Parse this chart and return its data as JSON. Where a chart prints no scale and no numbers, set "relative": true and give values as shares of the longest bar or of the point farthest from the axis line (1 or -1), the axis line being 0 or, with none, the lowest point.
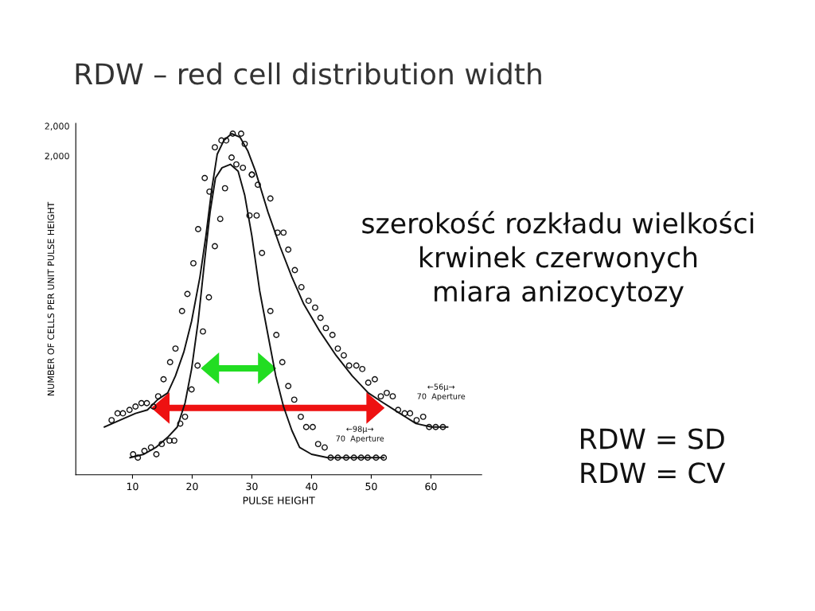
{
  "chart_data": {
    "type": "line",
    "title": "RDW – red cell distribution width",
    "xlabel": "PULSE HEIGHT",
    "ylabel": "NUMBER OF CELLS PER UNIT PULSE HEIGHT",
    "xlim": [
      0.5,
      68.5
    ],
    "xticks": [
      10,
      20,
      30,
      40,
      50,
      60
    ],
    "relative": true,
    "grid": false,
    "legend": false,
    "series": [
      {
        "color": "#111111",
        "marker": "none",
        "x": [
          5.3,
          7.9,
          10.5,
          12.5,
          14.2,
          15.9,
          17.2,
          18.6,
          19.9,
          21.3,
          22.3,
          23.3,
          24.2,
          25.3,
          26.6,
          28.0,
          29.3,
          30.6,
          32.7,
          34.7,
          36.7,
          38.7,
          41.4,
          44.1,
          46.8,
          49.5,
          52.1,
          54.8,
          57.5,
          60.1,
          62.8
        ],
        "values": [
          0.14,
          0.16,
          0.18,
          0.19,
          0.22,
          0.24,
          0.29,
          0.36,
          0.45,
          0.58,
          0.7,
          0.84,
          0.94,
          0.98,
          1.0,
          0.99,
          0.95,
          0.89,
          0.77,
          0.67,
          0.58,
          0.5,
          0.42,
          0.35,
          0.29,
          0.24,
          0.21,
          0.18,
          0.15,
          0.14,
          0.14
        ]
      },
      {
        "color": "#111111",
        "marker": "none",
        "x": [
          9.6,
          11.9,
          13.9,
          15.9,
          17.5,
          18.8,
          19.9,
          21.0,
          22.1,
          23.0,
          23.9,
          25.0,
          26.4,
          27.7,
          28.8,
          30.0,
          31.3,
          32.7,
          34.0,
          35.3,
          36.7,
          38.0,
          40.0,
          42.7,
          46.7,
          52.1
        ],
        "values": [
          0.05,
          0.06,
          0.08,
          0.11,
          0.14,
          0.21,
          0.31,
          0.45,
          0.63,
          0.77,
          0.87,
          0.9,
          0.91,
          0.89,
          0.82,
          0.7,
          0.54,
          0.41,
          0.29,
          0.2,
          0.13,
          0.08,
          0.06,
          0.05,
          0.05,
          0.05
        ]
      },
      {
        "type": "scatter",
        "color": "#111111",
        "marker": "circle",
        "x": [
          6.5,
          7.5,
          8.4,
          9.5,
          10.5,
          11.5,
          12.4,
          13.5,
          14.3,
          15.2,
          16.3,
          17.2,
          18.3,
          19.2,
          20.2,
          21.0,
          22.1,
          22.9,
          23.8,
          24.9,
          25.7,
          26.8,
          28.2,
          28.8,
          30.0,
          31.0,
          33.1,
          34.3,
          35.3,
          36.1,
          37.2,
          38.3,
          39.5,
          40.6,
          41.5,
          42.4,
          43.5,
          44.4,
          45.4,
          46.3,
          47.5,
          48.5,
          49.5,
          50.6,
          51.6,
          52.6,
          53.6,
          54.5,
          55.6,
          56.5,
          57.6,
          58.7,
          59.7,
          60.8,
          62.0
        ],
        "values": [
          0.16,
          0.18,
          0.18,
          0.19,
          0.2,
          0.21,
          0.21,
          0.2,
          0.23,
          0.28,
          0.33,
          0.37,
          0.48,
          0.53,
          0.62,
          0.72,
          0.87,
          0.83,
          0.96,
          0.98,
          0.98,
          1.0,
          1.0,
          0.97,
          0.88,
          0.85,
          0.81,
          0.71,
          0.71,
          0.66,
          0.6,
          0.55,
          0.51,
          0.49,
          0.46,
          0.43,
          0.41,
          0.37,
          0.35,
          0.32,
          0.32,
          0.31,
          0.27,
          0.28,
          0.23,
          0.24,
          0.23,
          0.19,
          0.18,
          0.18,
          0.16,
          0.17,
          0.14,
          0.14,
          0.14
        ]
      },
      {
        "type": "scatter",
        "color": "#111111",
        "marker": "circle",
        "x": [
          10.1,
          10.9,
          12.0,
          13.1,
          14.0,
          14.9,
          16.2,
          17.0,
          18.0,
          18.8,
          19.9,
          20.9,
          21.8,
          22.8,
          23.8,
          24.7,
          25.5,
          26.6,
          27.4,
          28.5,
          30.0,
          29.6,
          30.8,
          31.7,
          33.1,
          34.1,
          35.1,
          36.1,
          37.1,
          38.2,
          39.1,
          40.2,
          41.1,
          42.2,
          43.2,
          44.4,
          45.8,
          47.1,
          48.3,
          49.4,
          50.8,
          52.1
        ],
        "values": [
          0.06,
          0.05,
          0.07,
          0.08,
          0.06,
          0.09,
          0.1,
          0.1,
          0.15,
          0.17,
          0.25,
          0.32,
          0.42,
          0.52,
          0.67,
          0.75,
          0.84,
          0.93,
          0.91,
          0.9,
          0.88,
          0.76,
          0.76,
          0.65,
          0.48,
          0.41,
          0.33,
          0.26,
          0.22,
          0.17,
          0.14,
          0.14,
          0.09,
          0.08,
          0.05,
          0.05,
          0.05,
          0.05,
          0.05,
          0.05,
          0.05,
          0.05
        ]
      }
    ],
    "annotations": [
      "2,000",
      "2,000",
      "szerokość rozkładu wielkości\nkrwinek czerwonych\nmiara anizocytozy",
      "RDW = SD\nRDW = CV",
      "←56μ→\n70  Aperture",
      "←98μ→\n70  Aperture"
    ]
  }
}
